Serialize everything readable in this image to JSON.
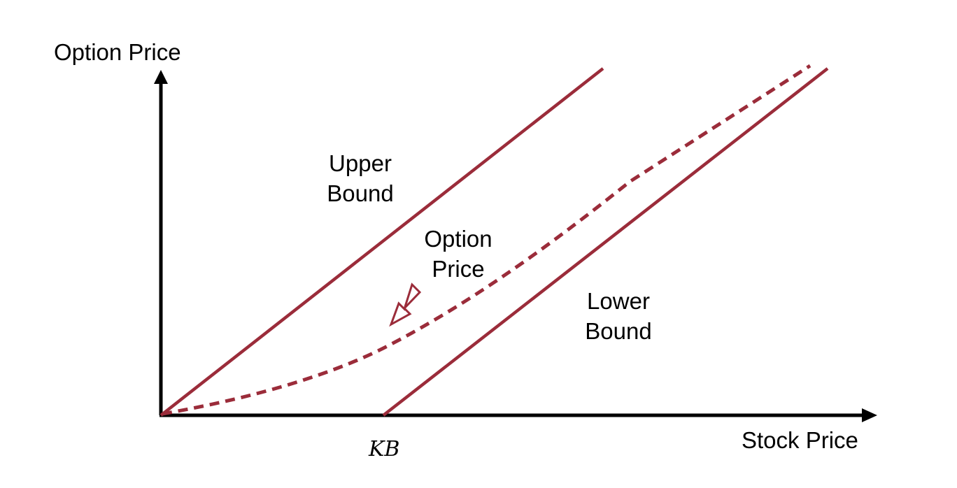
{
  "axes": {
    "y_label": "Option Price",
    "x_label": "Stock Price",
    "x_marker": "KB"
  },
  "curves": {
    "upper": {
      "line1": "Upper",
      "line2": "Bound"
    },
    "option": {
      "line1": "Option",
      "line2": "Price"
    },
    "lower": {
      "line1": "Lower",
      "line2": "Bound"
    }
  },
  "colors": {
    "curve": "#9B2C3A",
    "axis": "#000000"
  }
}
